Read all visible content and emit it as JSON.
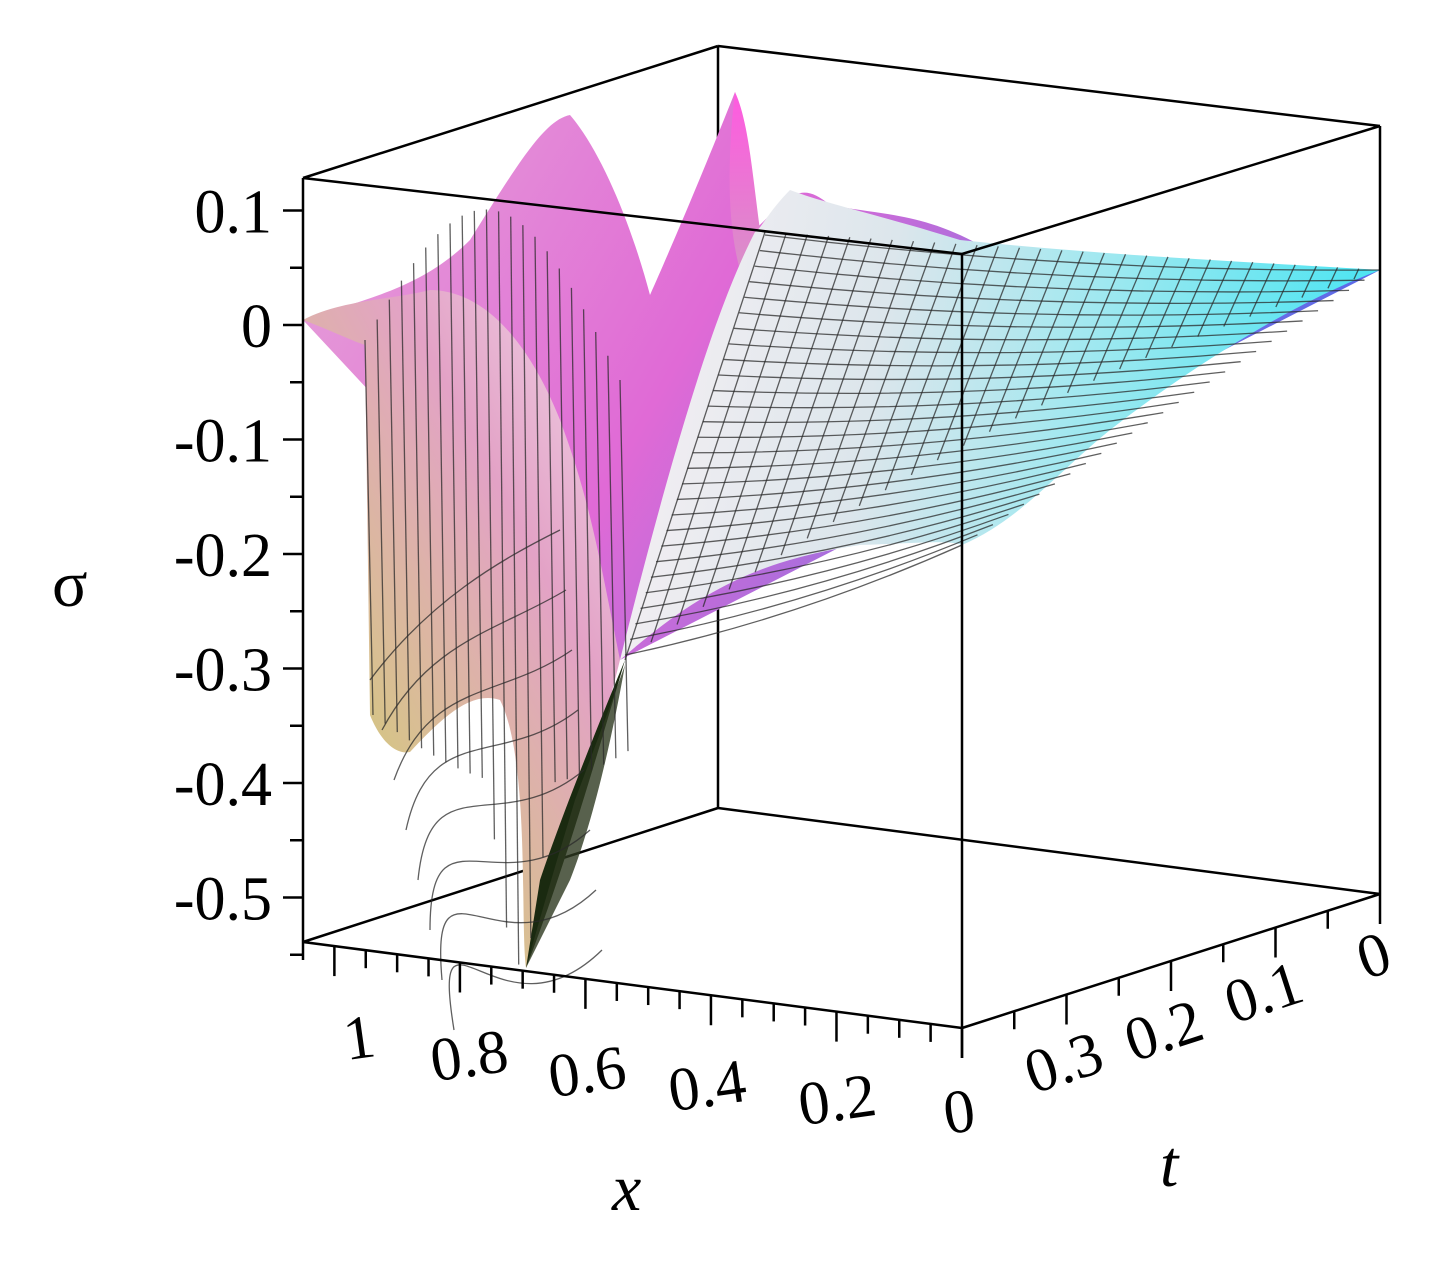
{
  "chart_data": {
    "type": "surface3d",
    "axes": {
      "x": {
        "label": "x",
        "range": [
          0,
          1.05
        ],
        "ticks": [
          "1",
          "0.8",
          "0.6",
          "0.4",
          "0.2",
          "0"
        ],
        "tick_values": [
          1,
          0.8,
          0.6,
          0.4,
          0.2,
          0
        ]
      },
      "t": {
        "label": "t",
        "range": [
          0,
          0.4
        ],
        "ticks": [
          "0.3",
          "0.2",
          "0.1",
          "0"
        ],
        "tick_values": [
          0.3,
          0.2,
          0.1,
          0
        ]
      },
      "z": {
        "label": "σ",
        "range": [
          -0.55,
          0.13
        ],
        "ticks": [
          "0.1",
          "0",
          "-0.1",
          "-0.2",
          "-0.3",
          "-0.4",
          "-0.5"
        ],
        "tick_values": [
          0.1,
          0,
          -0.1,
          -0.2,
          -0.3,
          -0.4,
          -0.5
        ]
      }
    },
    "surface_profile": {
      "t_front_x": [
        1.05,
        1.0,
        0.95,
        0.92,
        0.9,
        0.85,
        0.8,
        0.75,
        0.7,
        0.65,
        0.6,
        0.55,
        0.5,
        0.4,
        0.3,
        0.2,
        0.1,
        0.0
      ],
      "t_front_sigma": [
        0.0,
        -0.02,
        -0.3,
        -0.35,
        -0.36,
        -0.35,
        -0.33,
        -0.5,
        -0.52,
        -0.33,
        -0.3,
        -0.28,
        -0.25,
        -0.2,
        -0.18,
        -0.17,
        -0.16,
        -0.16
      ],
      "t_back_sigma_peak": 0.1
    },
    "colors": {
      "front": "#b8c84a",
      "mid": "#e090c8",
      "back": "#6a6ae6",
      "right": "#40e6f0"
    }
  }
}
